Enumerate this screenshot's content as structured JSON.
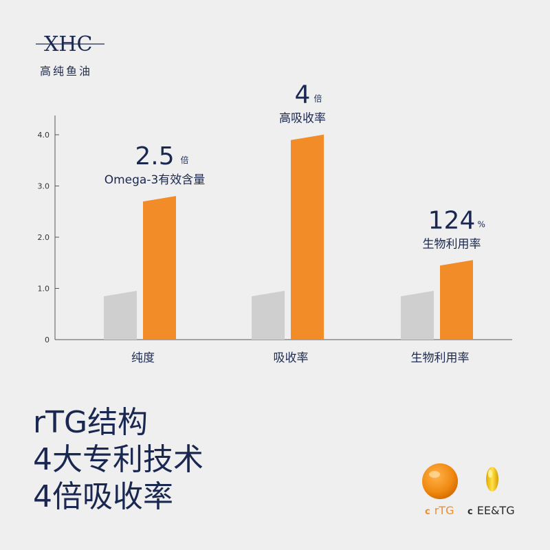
{
  "brand": {
    "logo_text": "ΧΗC",
    "subtitle": "高纯鱼油"
  },
  "chart_data": {
    "type": "bar",
    "categories": [
      "纯度",
      "吸收率",
      "生物利用率"
    ],
    "series": [
      {
        "values": [
          0.9,
          0.9,
          0.9
        ],
        "color": "#cfcfcf"
      },
      {
        "values": [
          2.75,
          3.95,
          1.5
        ],
        "color": "#f28c28"
      }
    ],
    "ylim": [
      0,
      4.5
    ],
    "yticks": [
      0,
      1.0,
      2.0,
      3.0,
      4.0
    ],
    "ytick_labels": [
      "0",
      "1.0",
      "2.0",
      "3.0",
      "4.0"
    ],
    "annotations": [
      {
        "value": "2.5",
        "unit": "倍",
        "label": "Omega-3有效含量",
        "category": 0
      },
      {
        "value": "4",
        "unit": "倍",
        "label": "高吸收率",
        "category": 1
      },
      {
        "value": "124",
        "unit": "%",
        "label": "生物利用率",
        "category": 2
      }
    ],
    "grid": false
  },
  "headline": {
    "line1": "rTG结构",
    "line2": "4大专利技术",
    "line3": "4倍吸收率"
  },
  "legend": {
    "items": [
      {
        "marker": "c",
        "label": "rTG",
        "color": "#f28c28",
        "icon": "orange-softgel-icon"
      },
      {
        "marker": "c",
        "label": "EE&TG",
        "color": "#2a2a2a",
        "icon": "yellow-softgel-icon"
      }
    ]
  }
}
